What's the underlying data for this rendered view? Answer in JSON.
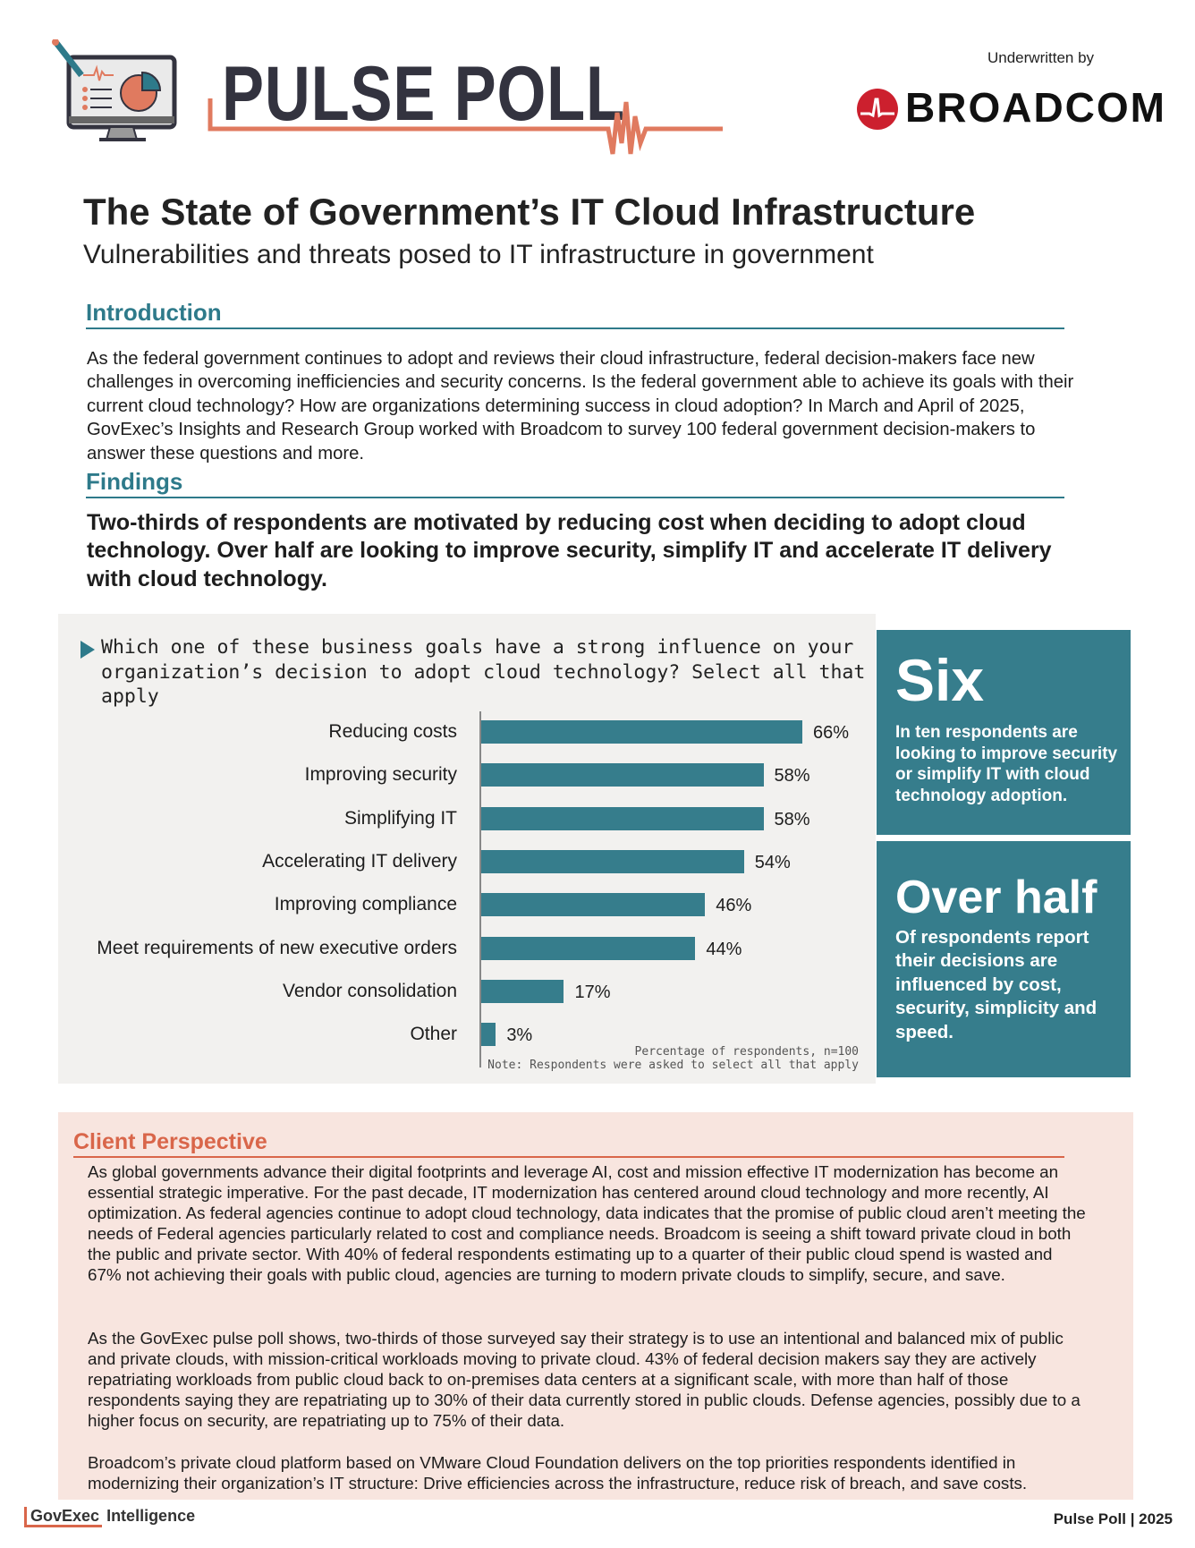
{
  "header": {
    "logo_title": "PULSE POLL",
    "underwritten_label": "Underwritten by",
    "sponsor": "BROADCOM"
  },
  "title": "The State of Government’s IT Cloud Infrastructure",
  "subtitle": "Vulnerabilities and threats posed to IT infrastructure in government",
  "introduction": {
    "heading": "Introduction",
    "text": "As the federal government continues to adopt and reviews their cloud infrastructure, federal decision-makers face new challenges in overcoming inefficiencies and security concerns. Is the federal government able to achieve its goals with their current cloud technology? How are organizations determining success in cloud adoption? In March and April of 2025, GovExec’s Insights and Research Group worked with Broadcom to survey 100 federal government decision-makers to answer these questions and more."
  },
  "findings": {
    "heading": "Findings",
    "lead": "Two-thirds of respondents are motivated by reducing cost when deciding to adopt cloud technology. Over half are looking to improve security, simplify IT and accelerate IT delivery with cloud technology."
  },
  "chart_data": {
    "type": "bar",
    "title": "Which one of these business goals have a strong influence on your organization’s decision to adopt cloud technology? Select all that apply",
    "categories": [
      "Reducing costs",
      "Improving security",
      "Simplifying IT",
      "Accelerating IT delivery",
      "Improving compliance",
      "Meet requirements of new executive orders",
      "Vendor consolidation",
      "Other"
    ],
    "values": [
      66,
      58,
      58,
      54,
      46,
      44,
      17,
      3
    ],
    "value_labels": [
      "66%",
      "58%",
      "58%",
      "54%",
      "46%",
      "44%",
      "17%",
      "3%"
    ],
    "xlabel": "Percentage of respondents, n=100",
    "note": "Note: Respondents were asked to select all that apply",
    "xlim": [
      0,
      100
    ],
    "color": "#367d8c"
  },
  "callouts": [
    {
      "big": "Six",
      "text": "In ten respondents are looking to improve security or simplify IT with cloud technology adoption."
    },
    {
      "big": "Over half",
      "text": "Of respondents report their decisions  are influenced by cost, security, simplicity and speed."
    }
  ],
  "client": {
    "heading": "Client Perspective",
    "paragraphs": [
      "As global governments advance their digital footprints and leverage AI, cost and mission effective IT modernization has become an essential strategic imperative. For the past decade, IT modernization has centered around cloud technology and more recently, AI optimization. As federal agencies continue to adopt cloud technology, data indicates that the promise of public cloud aren’t meeting the needs of Federal agencies particularly related to cost and compliance needs. Broadcom is seeing a shift toward private cloud in both the public and private sector. With 40% of federal respondents estimating up to a quarter of their public cloud spend is wasted and 67% not achieving their goals with public cloud, agencies are turning to modern private clouds to simplify, secure, and save.",
      "As the GovExec pulse poll shows, two-thirds of those surveyed say their strategy is to use an intentional and balanced mix of public and private clouds, with mission-critical workloads moving to private cloud. 43% of federal decision makers say they are actively repatriating workloads from public cloud back to on-premises data centers at a significant scale, with more than half of those respondents saying they are repatriating up to 30% of their data currently stored in public clouds. Defense agencies, possibly due to a higher focus on security, are repatriating up to 75% of their data.",
      "Broadcom’s private cloud platform based on VMware Cloud Foundation delivers on the top priorities respondents identified in modernizing their organization’s IT structure: Drive efficiencies across the infrastructure, reduce risk of breach, and save costs."
    ]
  },
  "footer": {
    "brand": "GovExec",
    "brand_suffix": "Intelligence",
    "right": "Pulse Poll | 2025"
  },
  "colors": {
    "teal": "#367d8c",
    "coral": "#d9664a",
    "chart_bg": "#f2f1ef",
    "client_bg": "#f8e5df",
    "broadcom_red": "#cc202e"
  }
}
